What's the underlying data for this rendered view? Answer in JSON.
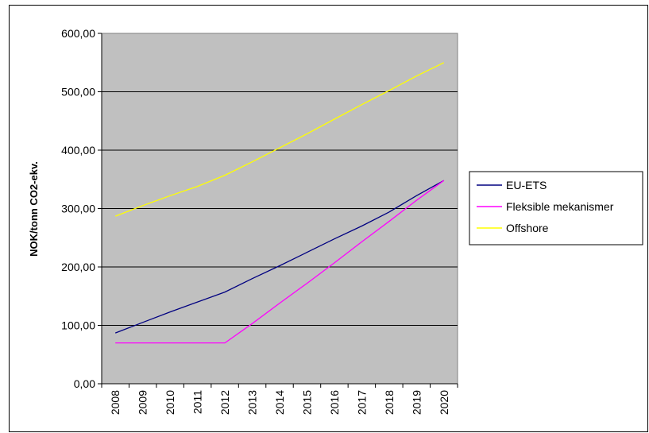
{
  "chart_data": {
    "type": "line",
    "ylabel": "NOK/tonn CO2-ekv.",
    "xlabel": "",
    "ylim": [
      0,
      600
    ],
    "yticks": [
      "0,00",
      "100,00",
      "200,00",
      "300,00",
      "400,00",
      "500,00",
      "600,00"
    ],
    "categories": [
      "2008",
      "2009",
      "2010",
      "2011",
      "2012",
      "2013",
      "2014",
      "2015",
      "2016",
      "2017",
      "2018",
      "2019",
      "2020"
    ],
    "grid": true,
    "legend_position": "right",
    "plot_background": "#c0c0c0",
    "series": [
      {
        "name": "EU-ETS",
        "color": "#000080",
        "values": [
          87,
          105,
          123,
          140,
          157,
          180,
          202,
          225,
          248,
          270,
          294,
          322,
          348
        ]
      },
      {
        "name": "Fleksible mekanismer",
        "color": "#ff00ff",
        "values": [
          70,
          70,
          70,
          70,
          70,
          103,
          138,
          172,
          207,
          243,
          278,
          314,
          348
        ]
      },
      {
        "name": "Offshore",
        "color": "#ffff00",
        "values": [
          287,
          305,
          322,
          338,
          357,
          380,
          404,
          428,
          453,
          478,
          502,
          527,
          550
        ]
      }
    ]
  }
}
